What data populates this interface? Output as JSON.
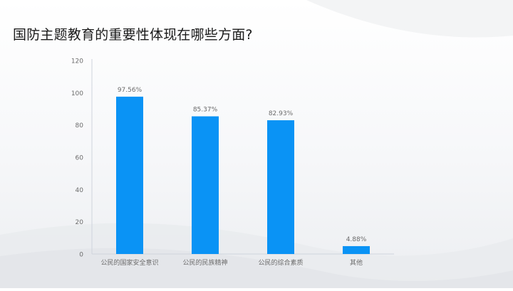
{
  "slide": {
    "title": "国防主题教育的重要性体现在哪些方面?"
  },
  "colors": {
    "bar": "#0a93f5",
    "axis_text": "#6b6b6b",
    "label_text": "#6b6b6b",
    "axis_line": "#cfd4dc"
  },
  "chart_data": {
    "type": "bar",
    "categories": [
      "公民的国家安全意识",
      "公民的民族精神",
      "公民的综合素质",
      "其他"
    ],
    "values": [
      97.56,
      85.37,
      82.93,
      4.88
    ],
    "data_labels": [
      "97.56%",
      "85.37%",
      "82.93%",
      "4.88%"
    ],
    "yticks": [
      0,
      20,
      40,
      60,
      80,
      100,
      120
    ],
    "ylim": [
      0,
      120
    ],
    "grid": false,
    "legend": "none"
  }
}
